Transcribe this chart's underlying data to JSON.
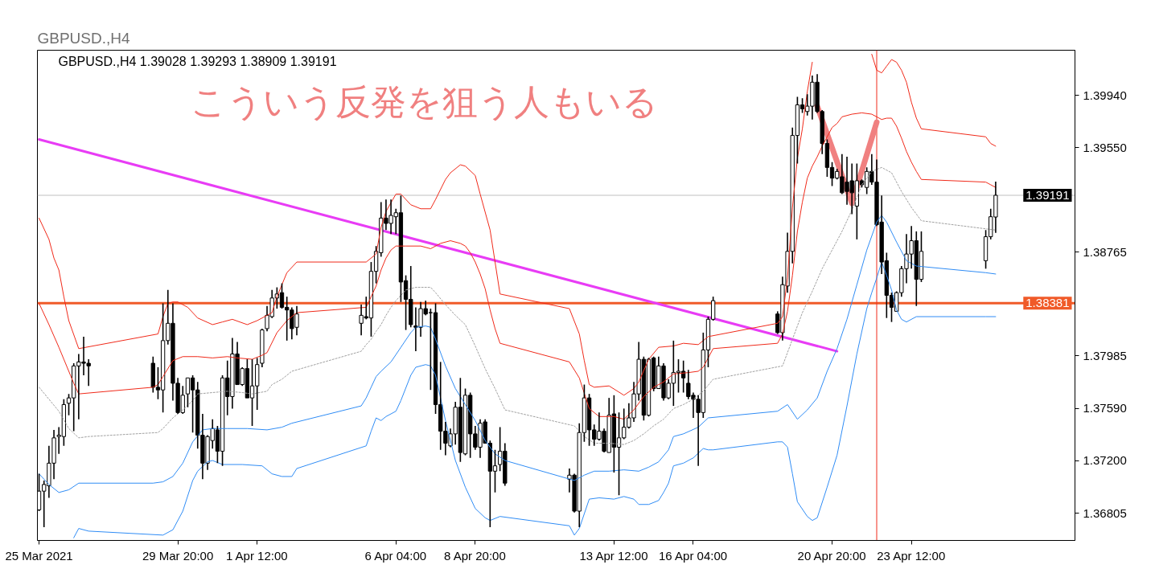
{
  "chart_data": {
    "type": "candlestick",
    "title": "GBPUSD.,H4",
    "subtitle": "GBPUSD.,H4 1.39028 1.39293 1.38909 1.39191",
    "annotations": [
      "こういう反発を狙う人もいる"
    ],
    "x": [
      "2021-03-25T04:00",
      "2021-03-25T08:00",
      "2021-03-25T12:00",
      "2021-03-25T16:00",
      "2021-03-25T20:00",
      "2021-03-26T00:00",
      "2021-03-26T04:00",
      "2021-03-26T08:00",
      "2021-03-26T12:00",
      "2021-03-26T16:00",
      "2021-03-26T20:00",
      "2021-03-29T00:00",
      "2021-03-29T04:00",
      "2021-03-29T08:00",
      "2021-03-29T12:00",
      "2021-03-29T16:00",
      "2021-03-29T20:00",
      "2021-03-30T00:00",
      "2021-03-30T04:00",
      "2021-03-30T08:00",
      "2021-03-30T12:00",
      "2021-03-30T16:00",
      "2021-03-30T20:00",
      "2021-03-31T00:00",
      "2021-03-31T04:00",
      "2021-03-31T08:00",
      "2021-03-31T12:00",
      "2021-03-31T16:00",
      "2021-03-31T20:00",
      "2021-04-01T00:00",
      "2021-04-01T04:00",
      "2021-04-01T08:00",
      "2021-04-01T12:00",
      "2021-04-01T16:00",
      "2021-04-01T20:00",
      "2021-04-02T00:00",
      "2021-04-02T04:00",
      "2021-04-02T08:00",
      "2021-04-02T12:00",
      "2021-04-02T16:00",
      "2021-04-02T20:00",
      "2021-04-05T00:00",
      "2021-04-05T04:00",
      "2021-04-05T08:00",
      "2021-04-05T12:00",
      "2021-04-05T16:00",
      "2021-04-05T20:00",
      "2021-04-06T00:00",
      "2021-04-06T04:00",
      "2021-04-06T08:00",
      "2021-04-06T12:00",
      "2021-04-06T16:00",
      "2021-04-06T20:00",
      "2021-04-07T00:00",
      "2021-04-07T04:00",
      "2021-04-07T08:00",
      "2021-04-07T12:00",
      "2021-04-07T16:00",
      "2021-04-07T20:00",
      "2021-04-08T00:00",
      "2021-04-08T04:00",
      "2021-04-08T08:00",
      "2021-04-08T12:00",
      "2021-04-08T16:00",
      "2021-04-08T20:00",
      "2021-04-09T00:00",
      "2021-04-09T04:00",
      "2021-04-09T08:00",
      "2021-04-09T12:00",
      "2021-04-09T16:00",
      "2021-04-09T20:00",
      "2021-04-12T00:00",
      "2021-04-12T04:00",
      "2021-04-12T08:00",
      "2021-04-12T12:00",
      "2021-04-12T16:00",
      "2021-04-12T20:00",
      "2021-04-13T00:00",
      "2021-04-13T04:00",
      "2021-04-13T08:00",
      "2021-04-13T12:00",
      "2021-04-13T16:00",
      "2021-04-13T20:00",
      "2021-04-14T00:00",
      "2021-04-14T04:00",
      "2021-04-14T08:00",
      "2021-04-14T12:00",
      "2021-04-14T16:00",
      "2021-04-14T20:00",
      "2021-04-15T00:00",
      "2021-04-15T04:00",
      "2021-04-15T08:00",
      "2021-04-15T12:00",
      "2021-04-15T16:00",
      "2021-04-15T20:00",
      "2021-04-16T00:00",
      "2021-04-16T04:00",
      "2021-04-16T08:00",
      "2021-04-16T12:00",
      "2021-04-16T16:00",
      "2021-04-16T20:00",
      "2021-04-19T00:00",
      "2021-04-19T04:00",
      "2021-04-19T08:00",
      "2021-04-19T12:00",
      "2021-04-19T16:00",
      "2021-04-19T20:00",
      "2021-04-20T00:00",
      "2021-04-20T04:00",
      "2021-04-20T08:00",
      "2021-04-20T12:00",
      "2021-04-20T16:00",
      "2021-04-20T20:00",
      "2021-04-21T00:00",
      "2021-04-21T04:00",
      "2021-04-21T08:00",
      "2021-04-21T12:00",
      "2021-04-21T16:00",
      "2021-04-21T20:00",
      "2021-04-22T00:00",
      "2021-04-22T04:00",
      "2021-04-22T08:00",
      "2021-04-22T12:00",
      "2021-04-22T16:00",
      "2021-04-22T20:00",
      "2021-04-23T00:00",
      "2021-04-23T04:00",
      "2021-04-23T08:00",
      "2021-04-23T12:00",
      "2021-04-23T16:00",
      "2021-04-23T20:00",
      "2021-04-26T00:00",
      "2021-04-26T04:00",
      "2021-04-26T08:00"
    ],
    "ohlc": [
      [
        1.3683,
        1.371,
        1.3682,
        1.3697
      ],
      [
        1.3697,
        1.3705,
        1.367,
        1.3702
      ],
      [
        1.3701,
        1.3731,
        1.3692,
        1.3718
      ],
      [
        1.3718,
        1.3743,
        1.3706,
        1.3737
      ],
      [
        1.3738,
        1.3745,
        1.3725,
        1.3739
      ],
      [
        1.3738,
        1.3766,
        1.3731,
        1.3762
      ],
      [
        1.3763,
        1.377,
        1.3754,
        1.3767
      ],
      [
        1.3767,
        1.3793,
        1.3742,
        1.3791
      ],
      [
        1.3791,
        1.38,
        1.3751,
        1.3794
      ],
      [
        1.3794,
        1.3813,
        1.3784,
        1.3793
      ],
      [
        1.3793,
        1.3796,
        1.3776,
        1.3791
      ],
      [
        1.3793,
        1.3798,
        1.3771,
        1.3775
      ],
      [
        1.3775,
        1.379,
        1.3766,
        1.3773
      ],
      [
        1.3773,
        1.3838,
        1.3756,
        1.381
      ],
      [
        1.381,
        1.3848,
        1.3807,
        1.3823
      ],
      [
        1.3823,
        1.3838,
        1.3765,
        1.3778
      ],
      [
        1.3778,
        1.3782,
        1.3755,
        1.3756
      ],
      [
        1.3756,
        1.3776,
        1.3755,
        1.3769
      ],
      [
        1.377,
        1.3782,
        1.376,
        1.3782
      ],
      [
        1.3782,
        1.3784,
        1.3741,
        1.3773
      ],
      [
        1.3773,
        1.3779,
        1.3729,
        1.3739
      ],
      [
        1.3739,
        1.3755,
        1.3706,
        1.3718
      ],
      [
        1.3718,
        1.3739,
        1.3713,
        1.3738
      ],
      [
        1.3735,
        1.3751,
        1.3729,
        1.3744
      ],
      [
        1.3743,
        1.3746,
        1.3718,
        1.3727
      ],
      [
        1.3727,
        1.3784,
        1.3716,
        1.3782
      ],
      [
        1.3782,
        1.3795,
        1.3754,
        1.3768
      ],
      [
        1.3768,
        1.3812,
        1.3759,
        1.38
      ],
      [
        1.38,
        1.3809,
        1.3777,
        1.3777
      ],
      [
        1.3777,
        1.379,
        1.3776,
        1.3789
      ],
      [
        1.3789,
        1.3796,
        1.3767,
        1.3767
      ],
      [
        1.3767,
        1.3796,
        1.3746,
        1.3776
      ],
      [
        1.3776,
        1.3797,
        1.3758,
        1.3792
      ],
      [
        1.3793,
        1.3819,
        1.379,
        1.3818
      ],
      [
        1.3819,
        1.3836,
        1.3817,
        1.3829
      ],
      [
        1.3828,
        1.3848,
        1.3827,
        1.3842
      ],
      [
        1.3842,
        1.385,
        1.3834,
        1.3845
      ],
      [
        1.3846,
        1.3853,
        1.3834,
        1.3835
      ],
      [
        1.3835,
        1.3843,
        1.381,
        1.3833
      ],
      [
        1.3833,
        1.3835,
        1.3811,
        1.3819
      ],
      [
        1.382,
        1.3836,
        1.3814,
        1.383
      ],
      [
        1.3823,
        1.3837,
        1.3814,
        1.3829
      ],
      [
        1.3828,
        1.3843,
        1.3826,
        1.3827
      ],
      [
        1.3827,
        1.3869,
        1.3813,
        1.3862
      ],
      [
        1.3862,
        1.3881,
        1.3853,
        1.3877
      ],
      [
        1.3876,
        1.3914,
        1.3873,
        1.3902
      ],
      [
        1.3902,
        1.3916,
        1.3893,
        1.3898
      ],
      [
        1.3898,
        1.3916,
        1.389,
        1.3904
      ],
      [
        1.3903,
        1.3909,
        1.389,
        1.3906
      ],
      [
        1.3906,
        1.3919,
        1.3839,
        1.3854
      ],
      [
        1.3855,
        1.3859,
        1.3818,
        1.3841
      ],
      [
        1.3841,
        1.3866,
        1.382,
        1.3822
      ],
      [
        1.3821,
        1.3835,
        1.3802,
        1.382
      ],
      [
        1.382,
        1.3839,
        1.3813,
        1.3834
      ],
      [
        1.3834,
        1.384,
        1.3829,
        1.383
      ],
      [
        1.3831,
        1.3834,
        1.3773,
        1.3831
      ],
      [
        1.3831,
        1.3838,
        1.3755,
        1.3762
      ],
      [
        1.3762,
        1.3794,
        1.3728,
        1.3742
      ],
      [
        1.3742,
        1.3749,
        1.3724,
        1.3733
      ],
      [
        1.3731,
        1.3744,
        1.373,
        1.374
      ],
      [
        1.374,
        1.3764,
        1.3732,
        1.376
      ],
      [
        1.376,
        1.3782,
        1.3719,
        1.3726
      ],
      [
        1.3725,
        1.3774,
        1.3724,
        1.3769
      ],
      [
        1.3769,
        1.3771,
        1.3722,
        1.374
      ],
      [
        1.374,
        1.3746,
        1.3728,
        1.373
      ],
      [
        1.373,
        1.3751,
        1.3722,
        1.3748
      ],
      [
        1.3749,
        1.3751,
        1.3733,
        1.3733
      ],
      [
        1.3733,
        1.3735,
        1.367,
        1.3712
      ],
      [
        1.3712,
        1.3728,
        1.3696,
        1.3716
      ],
      [
        1.3717,
        1.3745,
        1.3712,
        1.3727
      ],
      [
        1.3727,
        1.3733,
        1.3701,
        1.3703
      ],
      [
        1.3706,
        1.3714,
        1.3696,
        1.3709
      ],
      [
        1.3709,
        1.371,
        1.3681,
        1.3682
      ],
      [
        1.3682,
        1.3748,
        1.367,
        1.3741
      ],
      [
        1.3741,
        1.3777,
        1.3734,
        1.3767
      ],
      [
        1.3767,
        1.377,
        1.3731,
        1.3743
      ],
      [
        1.3743,
        1.3747,
        1.3731,
        1.3736
      ],
      [
        1.3736,
        1.3756,
        1.3735,
        1.3742
      ],
      [
        1.3742,
        1.3744,
        1.3726,
        1.3727
      ],
      [
        1.3726,
        1.3767,
        1.3726,
        1.3754
      ],
      [
        1.3755,
        1.3769,
        1.3711,
        1.373
      ],
      [
        1.373,
        1.3756,
        1.3694,
        1.3737
      ],
      [
        1.3737,
        1.3759,
        1.3736,
        1.3745
      ],
      [
        1.3745,
        1.3763,
        1.3744,
        1.3752
      ],
      [
        1.3752,
        1.3779,
        1.3749,
        1.377
      ],
      [
        1.377,
        1.3809,
        1.3765,
        1.3796
      ],
      [
        1.3796,
        1.3798,
        1.375,
        1.3754
      ],
      [
        1.3754,
        1.3797,
        1.3753,
        1.3796
      ],
      [
        1.3797,
        1.3798,
        1.3772,
        1.3774
      ],
      [
        1.3774,
        1.3798,
        1.3774,
        1.3791
      ],
      [
        1.3791,
        1.3793,
        1.3765,
        1.3767
      ],
      [
        1.3767,
        1.3781,
        1.3766,
        1.3778
      ],
      [
        1.3778,
        1.381,
        1.3761,
        1.3786
      ],
      [
        1.3786,
        1.3796,
        1.3771,
        1.3787
      ],
      [
        1.3787,
        1.3795,
        1.3771,
        1.3782
      ],
      [
        1.3778,
        1.3788,
        1.3766,
        1.3768
      ],
      [
        1.3769,
        1.3771,
        1.3752,
        1.3766
      ],
      [
        1.3766,
        1.3769,
        1.3716,
        1.3756
      ],
      [
        1.3756,
        1.3816,
        1.3752,
        1.3803
      ],
      [
        1.3803,
        1.3828,
        1.379,
        1.3826
      ],
      [
        1.3826,
        1.3843,
        1.3825,
        1.384
      ],
      [
        1.383,
        1.3832,
        1.3815,
        1.3816
      ],
      [
        1.3816,
        1.3858,
        1.381,
        1.3852
      ],
      [
        1.3851,
        1.3891,
        1.3846,
        1.3877
      ],
      [
        1.3877,
        1.397,
        1.3868,
        1.3964
      ],
      [
        1.3964,
        1.3993,
        1.3943,
        1.3987
      ],
      [
        1.3987,
        1.3992,
        1.3981,
        1.3984
      ],
      [
        1.3982,
        1.3995,
        1.3979,
        1.3986
      ],
      [
        1.3986,
        1.4009,
        1.3976,
        1.4004
      ],
      [
        1.4004,
        1.401,
        1.3981,
        1.3982
      ],
      [
        1.3982,
        1.3983,
        1.395,
        1.3958
      ],
      [
        1.3958,
        1.3961,
        1.3933,
        1.394
      ],
      [
        1.394,
        1.3944,
        1.3926,
        1.3932
      ],
      [
        1.3932,
        1.3939,
        1.3931,
        1.3937
      ],
      [
        1.3933,
        1.395,
        1.392,
        1.3921
      ],
      [
        1.3929,
        1.3948,
        1.3912,
        1.3922
      ],
      [
        1.393,
        1.3943,
        1.3905,
        1.3921
      ],
      [
        1.3911,
        1.3943,
        1.3886,
        1.393
      ],
      [
        1.393,
        1.3931,
        1.3925,
        1.3927
      ],
      [
        1.3925,
        1.394,
        1.392,
        1.3937
      ],
      [
        1.3937,
        1.395,
        1.3927,
        1.3929
      ],
      [
        1.3929,
        1.3946,
        1.3896,
        1.3897
      ],
      [
        1.3899,
        1.3919,
        1.386,
        1.3869
      ],
      [
        1.387,
        1.3876,
        1.3827,
        1.3844
      ],
      [
        1.3844,
        1.3846,
        1.3824,
        1.3835
      ],
      [
        1.3832,
        1.3847,
        1.3832,
        1.3846
      ],
      [
        1.3846,
        1.3866,
        1.3843,
        1.3864
      ],
      [
        1.3864,
        1.389,
        1.3853,
        1.3875
      ],
      [
        1.3875,
        1.3896,
        1.3864,
        1.3885
      ],
      [
        1.3885,
        1.3892,
        1.3836,
        1.3856
      ],
      [
        1.3856,
        1.3892,
        1.3854,
        1.3877
      ],
      [
        1.387,
        1.3893,
        1.3864,
        1.3888
      ],
      [
        1.3888,
        1.3909,
        1.3886,
        1.3903
      ],
      [
        1.39028,
        1.39293,
        1.38909,
        1.39191
      ]
    ],
    "series": [
      {
        "type": "line",
        "color": "#f02a1a",
        "x": [
          "2021-03-25T04:00",
          "2021-03-25T12:00",
          "2021-03-25T16:00",
          "2021-03-25T20:00",
          "2021-03-26T00:00",
          "2021-03-26T04:00",
          "2021-03-26T12:00",
          "2021-03-29T04:00",
          "2021-03-29T08:00",
          "2021-03-29T12:00",
          "2021-03-29T16:00",
          "2021-03-29T20:00",
          "2021-03-30T04:00",
          "2021-03-30T12:00",
          "2021-03-31T00:00",
          "2021-03-31T08:00",
          "2021-03-31T16:00",
          "2021-04-01T04:00",
          "2021-04-01T12:00",
          "2021-04-02T00:00",
          "2021-04-02T04:00",
          "2021-04-02T12:00",
          "2021-04-02T20:00",
          "2021-04-05T04:00",
          "2021-04-05T12:00",
          "2021-04-05T16:00",
          "2021-04-05T20:00",
          "2021-04-06T04:00",
          "2021-04-06T08:00",
          "2021-04-06T16:00",
          "2021-04-07T00:00",
          "2021-04-07T08:00",
          "2021-04-07T12:00",
          "2021-04-07T20:00",
          "2021-04-08T00:00",
          "2021-04-08T08:00",
          "2021-04-08T12:00",
          "2021-04-08T20:00",
          "2021-04-09T00:00",
          "2021-04-09T08:00",
          "2021-04-09T16:00",
          "2021-04-12T00:00",
          "2021-04-12T08:00",
          "2021-04-12T12:00",
          "2021-04-12T16:00",
          "2021-04-12T20:00",
          "2021-04-13T08:00",
          "2021-04-13T20:00",
          "2021-04-14T04:00",
          "2021-04-14T08:00",
          "2021-04-14T16:00",
          "2021-04-15T00:00",
          "2021-04-15T12:00",
          "2021-04-15T20:00",
          "2021-04-16T08:00",
          "2021-04-16T12:00",
          "2021-04-16T16:00",
          "2021-04-19T00:00",
          "2021-04-19T04:00",
          "2021-04-19T08:00",
          "2021-04-19T12:00",
          "2021-04-19T16:00",
          "2021-04-19T20:00",
          "2021-04-20T00:00",
          "2021-04-20T04:00",
          "2021-04-20T08:00",
          "2021-04-22T04:00",
          "2021-04-22T08:00",
          "2021-04-22T12:00",
          "2021-04-22T16:00",
          "2021-04-22T20:00",
          "2021-04-23T00:00",
          "2021-04-23T04:00",
          "2021-04-23T08:00",
          "2021-04-23T12:00",
          "2021-04-23T16:00",
          "2021-04-23T20:00",
          "2021-04-26T00:00",
          "2021-04-26T04:00",
          "2021-04-26T08:00"
        ],
        "values": [
          1.3902,
          1.3886,
          1.3872,
          1.3863,
          1.3843,
          1.3825,
          1.3804,
          1.3815,
          1.3828,
          1.3838,
          1.3839,
          1.3839,
          1.3835,
          1.3827,
          1.3822,
          1.3824,
          1.3826,
          1.3822,
          1.3825,
          1.3831,
          1.3843,
          1.3861,
          1.3869,
          1.3869,
          1.3875,
          1.3895,
          1.3907,
          1.392,
          1.392,
          1.3912,
          1.3909,
          1.3909,
          1.3916,
          1.3931,
          1.3936,
          1.3942,
          1.3941,
          1.3934,
          1.392,
          1.3893,
          1.3845,
          1.3834,
          1.3815,
          1.3795,
          1.3777,
          1.3775,
          1.3776,
          1.3769,
          1.3774,
          1.3779,
          1.3796,
          1.3805,
          1.3806,
          1.3808,
          1.3807,
          1.381,
          1.3813,
          1.3823,
          1.3828,
          1.3857,
          1.391,
          1.3947,
          1.3969,
          1.3997,
          1.4019,
          null,
          1.4025,
          1.4013,
          1.4011,
          1.4016,
          1.4021,
          1.4019,
          1.4013,
          1.4004,
          1.3989,
          1.3977,
          1.3969,
          1.3963,
          1.3958,
          1.3956
        ]
      },
      {
        "type": "line",
        "color": "#f02a1a",
        "x": [
          "2021-03-25T04:00",
          "2021-03-25T12:00",
          "2021-03-25T20:00",
          "2021-03-26T00:00",
          "2021-03-26T08:00",
          "2021-03-26T12:00",
          "2021-03-29T00:00",
          "2021-03-29T04:00",
          "2021-03-29T08:00",
          "2021-03-29T16:00",
          "2021-03-30T00:00",
          "2021-03-30T12:00",
          "2021-03-31T00:00",
          "2021-03-31T12:00",
          "2021-03-31T20:00",
          "2021-04-01T08:00",
          "2021-04-01T16:00",
          "2021-04-01T20:00",
          "2021-04-02T04:00",
          "2021-04-02T12:00",
          "2021-04-02T20:00",
          "2021-04-05T04:00",
          "2021-04-05T12:00",
          "2021-04-05T16:00",
          "2021-04-05T20:00",
          "2021-04-06T00:00",
          "2021-04-06T04:00",
          "2021-04-06T12:00",
          "2021-04-07T00:00",
          "2021-04-07T08:00",
          "2021-04-07T16:00",
          "2021-04-08T00:00",
          "2021-04-08T08:00",
          "2021-04-08T12:00",
          "2021-04-08T16:00",
          "2021-04-08T20:00",
          "2021-04-09T00:00",
          "2021-04-09T04:00",
          "2021-04-09T08:00",
          "2021-04-09T12:00",
          "2021-04-09T16:00",
          "2021-04-12T00:00",
          "2021-04-12T08:00",
          "2021-04-12T16:00",
          "2021-04-13T00:00",
          "2021-04-13T12:00",
          "2021-04-13T20:00",
          "2021-04-14T04:00",
          "2021-04-14T12:00",
          "2021-04-14T20:00",
          "2021-04-15T04:00",
          "2021-04-15T12:00",
          "2021-04-16T00:00",
          "2021-04-16T08:00",
          "2021-04-16T12:00",
          "2021-04-16T16:00",
          "2021-04-16T20:00",
          "2021-04-19T00:00",
          "2021-04-19T04:00",
          "2021-04-19T08:00",
          "2021-04-19T12:00",
          "2021-04-19T16:00",
          "2021-04-19T20:00",
          "2021-04-20T00:00",
          "2021-04-20T04:00",
          "2021-04-20T08:00",
          "2021-04-20T12:00",
          "2021-04-20T16:00",
          "2021-04-20T20:00",
          "2021-04-21T00:00",
          "2021-04-21T04:00",
          "2021-04-21T12:00",
          "2021-04-21T20:00",
          "2021-04-22T04:00",
          "2021-04-22T08:00",
          "2021-04-22T12:00",
          "2021-04-22T16:00",
          "2021-04-22T20:00",
          "2021-04-23T00:00",
          "2021-04-23T04:00",
          "2021-04-23T08:00",
          "2021-04-23T12:00",
          "2021-04-23T16:00",
          "2021-04-23T20:00",
          "2021-04-26T00:00",
          "2021-04-26T04:00",
          "2021-04-26T08:00"
        ],
        "values": [
          1.3838,
          1.3822,
          1.3805,
          1.3796,
          1.3778,
          1.377,
          1.3775,
          1.3777,
          1.3783,
          1.3795,
          1.3798,
          1.3798,
          1.3797,
          1.3798,
          1.3797,
          1.3796,
          1.3799,
          1.3801,
          1.3816,
          1.3825,
          1.3831,
          1.3835,
          1.3851,
          1.3863,
          1.3872,
          1.3878,
          1.3881,
          1.3881,
          1.3881,
          1.3879,
          1.3883,
          1.3885,
          1.3883,
          1.3881,
          1.3876,
          1.3869,
          1.386,
          1.3849,
          1.3833,
          1.3819,
          1.3808,
          1.3794,
          1.3782,
          1.3759,
          1.3753,
          1.3753,
          1.3751,
          1.3758,
          1.3768,
          1.3775,
          1.3779,
          1.3785,
          1.3786,
          1.3787,
          1.379,
          1.3797,
          1.3804,
          1.3808,
          1.3815,
          1.3832,
          1.3859,
          1.3892,
          1.3914,
          1.3932,
          1.3941,
          1.3948,
          1.3956,
          1.3963,
          1.397,
          1.3973,
          1.3978,
          1.398,
          1.3981,
          1.398,
          1.3978,
          1.3976,
          1.3977,
          1.3977,
          1.3971,
          1.3962,
          1.3952,
          1.3944,
          1.3937,
          1.3931,
          1.3929,
          1.3927,
          1.3925
        ]
      },
      {
        "type": "line",
        "color": "#a0a0a0",
        "line_style": "dotted",
        "x": [
          "2021-03-25T04:00",
          "2021-03-25T12:00",
          "2021-03-25T20:00",
          "2021-03-26T04:00",
          "2021-03-26T12:00",
          "2021-03-26T20:00",
          "2021-03-29T04:00",
          "2021-03-29T08:00",
          "2021-03-29T16:00",
          "2021-03-30T00:00",
          "2021-03-30T08:00",
          "2021-03-30T12:00",
          "2021-03-31T00:00",
          "2021-03-31T12:00",
          "2021-04-01T00:00",
          "2021-04-01T08:00",
          "2021-04-01T20:00",
          "2021-04-02T00:00",
          "2021-04-02T08:00",
          "2021-04-02T16:00",
          "2021-04-05T00:00",
          "2021-04-05T04:00",
          "2021-04-05T08:00",
          "2021-04-05T12:00",
          "2021-04-05T16:00",
          "2021-04-05T20:00",
          "2021-04-06T00:00",
          "2021-04-06T04:00",
          "2021-04-06T08:00",
          "2021-04-06T12:00",
          "2021-04-06T20:00",
          "2021-04-07T08:00",
          "2021-04-07T12:00",
          "2021-04-07T20:00",
          "2021-04-08T04:00",
          "2021-04-08T12:00",
          "2021-04-08T20:00",
          "2021-04-09T04:00",
          "2021-04-09T12:00",
          "2021-04-09T20:00",
          "2021-04-12T04:00",
          "2021-04-12T12:00",
          "2021-04-12T20:00",
          "2021-04-13T08:00",
          "2021-04-13T20:00",
          "2021-04-14T04:00",
          "2021-04-14T12:00",
          "2021-04-14T20:00",
          "2021-04-15T04:00",
          "2021-04-15T12:00",
          "2021-04-15T20:00",
          "2021-04-16T04:00",
          "2021-04-16T12:00",
          "2021-04-16T20:00",
          "2021-04-19T04:00",
          "2021-04-19T12:00",
          "2021-04-19T20:00",
          "2021-04-20T04:00",
          "2021-04-20T12:00",
          "2021-04-20T20:00",
          "2021-04-21T04:00",
          "2021-04-21T12:00",
          "2021-04-21T20:00",
          "2021-04-22T04:00",
          "2021-04-22T12:00",
          "2021-04-22T20:00",
          "2021-04-23T04:00",
          "2021-04-23T12:00",
          "2021-04-23T20:00",
          "2021-04-26T08:00"
        ],
        "values": [
          1.3775,
          1.3766,
          1.3757,
          1.3744,
          1.3737,
          1.3738,
          1.3741,
          1.3744,
          1.3752,
          1.3758,
          1.3765,
          1.377,
          1.3771,
          1.3772,
          1.3771,
          1.377,
          1.3772,
          1.3777,
          1.3781,
          1.3787,
          1.3802,
          1.3807,
          1.3811,
          1.3817,
          1.3822,
          1.3829,
          1.3835,
          1.384,
          1.3844,
          1.3848,
          1.385,
          1.385,
          1.3846,
          1.3837,
          1.3829,
          1.3822,
          1.3806,
          1.3789,
          1.3774,
          1.3758,
          1.3746,
          1.3738,
          1.3733,
          1.3733,
          1.3732,
          1.3735,
          1.374,
          1.3746,
          1.3751,
          1.3759,
          1.3762,
          1.3766,
          1.3772,
          1.3781,
          1.3791,
          1.3811,
          1.3831,
          1.3847,
          1.3864,
          1.3878,
          1.3892,
          1.3908,
          1.3927,
          1.3937,
          1.394,
          1.3936,
          1.3922,
          1.391,
          1.39,
          1.3893
        ]
      },
      {
        "type": "line",
        "color": "#2f8cf5",
        "x": [
          "2021-03-25T04:00",
          "2021-03-25T12:00",
          "2021-03-25T20:00",
          "2021-03-26T04:00",
          "2021-03-26T12:00",
          "2021-03-29T00:00",
          "2021-03-29T08:00",
          "2021-03-29T16:00",
          "2021-03-30T00:00",
          "2021-03-30T08:00",
          "2021-03-30T16:00",
          "2021-03-31T00:00",
          "2021-03-31T12:00",
          "2021-04-01T04:00",
          "2021-04-01T20:00",
          "2021-04-02T08:00",
          "2021-04-02T16:00",
          "2021-04-05T00:00",
          "2021-04-05T04:00",
          "2021-04-05T08:00",
          "2021-04-05T12:00",
          "2021-04-05T16:00",
          "2021-04-06T00:00",
          "2021-04-06T08:00",
          "2021-04-06T16:00",
          "2021-04-06T20:00",
          "2021-04-07T04:00",
          "2021-04-07T08:00",
          "2021-04-07T12:00",
          "2021-04-07T20:00",
          "2021-04-08T04:00",
          "2021-04-08T12:00",
          "2021-04-08T20:00",
          "2021-04-09T04:00",
          "2021-04-09T12:00",
          "2021-04-09T20:00",
          "2021-04-12T04:00",
          "2021-04-12T12:00",
          "2021-04-12T20:00",
          "2021-04-13T08:00",
          "2021-04-13T20:00",
          "2021-04-14T08:00",
          "2021-04-14T16:00",
          "2021-04-15T00:00",
          "2021-04-15T08:00",
          "2021-04-15T12:00",
          "2021-04-15T20:00",
          "2021-04-16T08:00",
          "2021-04-16T16:00",
          "2021-04-19T00:00",
          "2021-04-19T08:00",
          "2021-04-19T16:00",
          "2021-04-20T00:00",
          "2021-04-20T08:00",
          "2021-04-20T16:00",
          "2021-04-21T00:00",
          "2021-04-21T08:00",
          "2021-04-21T16:00",
          "2021-04-22T00:00",
          "2021-04-22T08:00",
          "2021-04-22T12:00",
          "2021-04-22T16:00",
          "2021-04-23T00:00",
          "2021-04-23T08:00",
          "2021-04-23T16:00",
          "2021-04-26T00:00",
          "2021-04-26T08:00"
        ],
        "values": [
          1.371,
          1.3702,
          1.3696,
          1.3698,
          1.3703,
          1.3703,
          1.3704,
          1.3708,
          1.3718,
          1.3734,
          1.3743,
          1.3744,
          1.3744,
          1.3744,
          1.3743,
          1.3745,
          1.3748,
          1.3761,
          1.3767,
          1.3775,
          1.3783,
          1.3787,
          1.3794,
          1.3805,
          1.3816,
          1.382,
          1.3821,
          1.382,
          1.3811,
          1.3791,
          1.3774,
          1.3762,
          1.375,
          1.3735,
          1.3725,
          1.372,
          1.3705,
          1.3709,
          1.3712,
          1.3712,
          1.3713,
          1.3712,
          1.3715,
          1.3719,
          1.3728,
          1.3738,
          1.374,
          1.3745,
          1.3752,
          1.3757,
          1.3762,
          1.3751,
          1.3758,
          1.3767,
          1.3787,
          1.3804,
          1.3826,
          1.3852,
          1.3878,
          1.3899,
          1.3904,
          1.3899,
          1.3884,
          1.387,
          1.3866,
          1.3861,
          1.386
        ]
      },
      {
        "type": "line",
        "color": "#2f8cf5",
        "x": [
          "2021-03-26T08:00",
          "2021-03-26T12:00",
          "2021-03-26T20:00",
          "2021-03-29T08:00",
          "2021-03-29T16:00",
          "2021-03-30T00:00",
          "2021-03-30T08:00",
          "2021-03-30T12:00",
          "2021-03-30T20:00",
          "2021-03-31T00:00",
          "2021-03-31T08:00",
          "2021-04-01T00:00",
          "2021-04-01T16:00",
          "2021-04-02T00:00",
          "2021-04-02T08:00",
          "2021-04-02T16:00",
          "2021-04-02T20:00",
          "2021-04-05T04:00",
          "2021-04-05T08:00",
          "2021-04-05T12:00",
          "2021-04-05T16:00",
          "2021-04-05T20:00",
          "2021-04-06T04:00",
          "2021-04-06T08:00",
          "2021-04-06T16:00",
          "2021-04-06T20:00",
          "2021-04-07T04:00",
          "2021-04-07T08:00",
          "2021-04-07T12:00",
          "2021-04-07T20:00",
          "2021-04-08T04:00",
          "2021-04-08T12:00",
          "2021-04-08T20:00",
          "2021-04-09T04:00",
          "2021-04-09T08:00",
          "2021-04-09T16:00",
          "2021-04-12T00:00",
          "2021-04-12T04:00",
          "2021-04-12T08:00",
          "2021-04-12T16:00",
          "2021-04-13T00:00",
          "2021-04-13T12:00",
          "2021-04-13T20:00",
          "2021-04-14T04:00",
          "2021-04-14T08:00",
          "2021-04-14T16:00",
          "2021-04-15T00:00",
          "2021-04-15T04:00",
          "2021-04-15T08:00",
          "2021-04-15T12:00",
          "2021-04-15T20:00",
          "2021-04-16T04:00",
          "2021-04-16T12:00",
          "2021-04-16T16:00",
          "2021-04-16T20:00",
          "2021-04-19T00:00",
          "2021-04-19T04:00",
          "2021-04-19T08:00",
          "2021-04-19T12:00",
          "2021-04-19T16:00",
          "2021-04-20T00:00",
          "2021-04-20T04:00",
          "2021-04-20T08:00",
          "2021-04-20T16:00",
          "2021-04-21T00:00",
          "2021-04-21T08:00",
          "2021-04-21T16:00",
          "2021-04-22T00:00",
          "2021-04-22T04:00",
          "2021-04-22T08:00",
          "2021-04-22T12:00",
          "2021-04-22T16:00",
          "2021-04-22T20:00",
          "2021-04-23T00:00",
          "2021-04-23T04:00",
          "2021-04-23T08:00",
          "2021-04-23T16:00",
          "2021-04-26T00:00",
          "2021-04-26T08:00"
        ],
        "values": [
          1.3662,
          1.3669,
          1.3667,
          1.3664,
          1.3668,
          1.3682,
          1.3705,
          1.3712,
          1.3719,
          1.372,
          1.3717,
          1.3717,
          1.3716,
          1.371,
          1.3708,
          1.3708,
          1.3714,
          1.3731,
          1.3742,
          1.3752,
          1.375,
          1.3753,
          1.3757,
          1.3765,
          1.3784,
          1.379,
          1.3792,
          1.3791,
          1.3784,
          1.375,
          1.372,
          1.37,
          1.3684,
          1.3677,
          1.3675,
          1.3678,
          1.3671,
          1.3664,
          1.3669,
          1.3691,
          1.3692,
          1.3691,
          1.3693,
          1.3691,
          1.3687,
          1.3687,
          1.369,
          1.3696,
          1.3703,
          1.3716,
          1.3718,
          1.3722,
          1.3729,
          1.3728,
          1.3728,
          1.3734,
          1.3734,
          1.373,
          1.371,
          1.3689,
          1.3678,
          1.3675,
          1.3677,
          1.37,
          1.3724,
          1.3761,
          1.38,
          1.3834,
          1.3846,
          1.3857,
          1.3869,
          1.3859,
          1.3848,
          1.3833,
          1.3826,
          1.3824,
          1.3828,
          1.3828,
          1.3828
        ]
      },
      {
        "type": "line",
        "color": "#e83cf5",
        "x": [
          "2021-03-25T04:00",
          "2021-04-21T00:00"
        ],
        "values": [
          1.3961,
          1.3802
        ]
      },
      {
        "type": "line",
        "color": "#f08080",
        "x": [
          "2021-04-20T08:00",
          "2021-04-21T12:00",
          "2021-04-22T08:00"
        ],
        "values": [
          1.3986,
          1.3913,
          1.3974
        ]
      }
    ],
    "ref_lines": [
      {
        "axis": "y",
        "value": 1.38381,
        "label": "1.38381",
        "color": "#f05a28"
      },
      {
        "axis": "y",
        "value": 1.39191,
        "label": "1.39191",
        "color": "#c0c0c0"
      },
      {
        "axis": "x",
        "value": "2021-04-22T08:00",
        "color": "#f02a1a"
      }
    ],
    "xlim": [
      "2021-03-25T02:40",
      "2021-04-29T00:00"
    ],
    "ylim": [
      1.366,
      1.4028
    ],
    "xticks": [
      {
        "value": "2021-03-25T04:00",
        "label": "25 Mar 2021"
      },
      {
        "value": "2021-03-29T20:00",
        "label": "29 Mar 20:00"
      },
      {
        "value": "2021-04-01T12:00",
        "label": "1 Apr 12:00"
      },
      {
        "value": "2021-04-06T04:00",
        "label": "6 Apr 04:00"
      },
      {
        "value": "2021-04-08T20:00",
        "label": "8 Apr 20:00"
      },
      {
        "value": "2021-04-13T12:00",
        "label": "13 Apr 12:00"
      },
      {
        "value": "2021-04-16T04:00",
        "label": "16 Apr 04:00"
      },
      {
        "value": "2021-04-20T20:00",
        "label": "20 Apr 20:00"
      },
      {
        "value": "2021-04-23T12:00",
        "label": "23 Apr 12:00"
      }
    ],
    "yticks": [
      1.36805,
      {
        "value": 1.372,
        "label": "1.37200"
      },
      {
        "value": 1.3759,
        "label": "1.37590"
      },
      1.37985,
      1.38765,
      {
        "value": 1.3955,
        "label": "1.39550"
      },
      {
        "value": 1.3994,
        "label": "1.39940"
      }
    ]
  }
}
